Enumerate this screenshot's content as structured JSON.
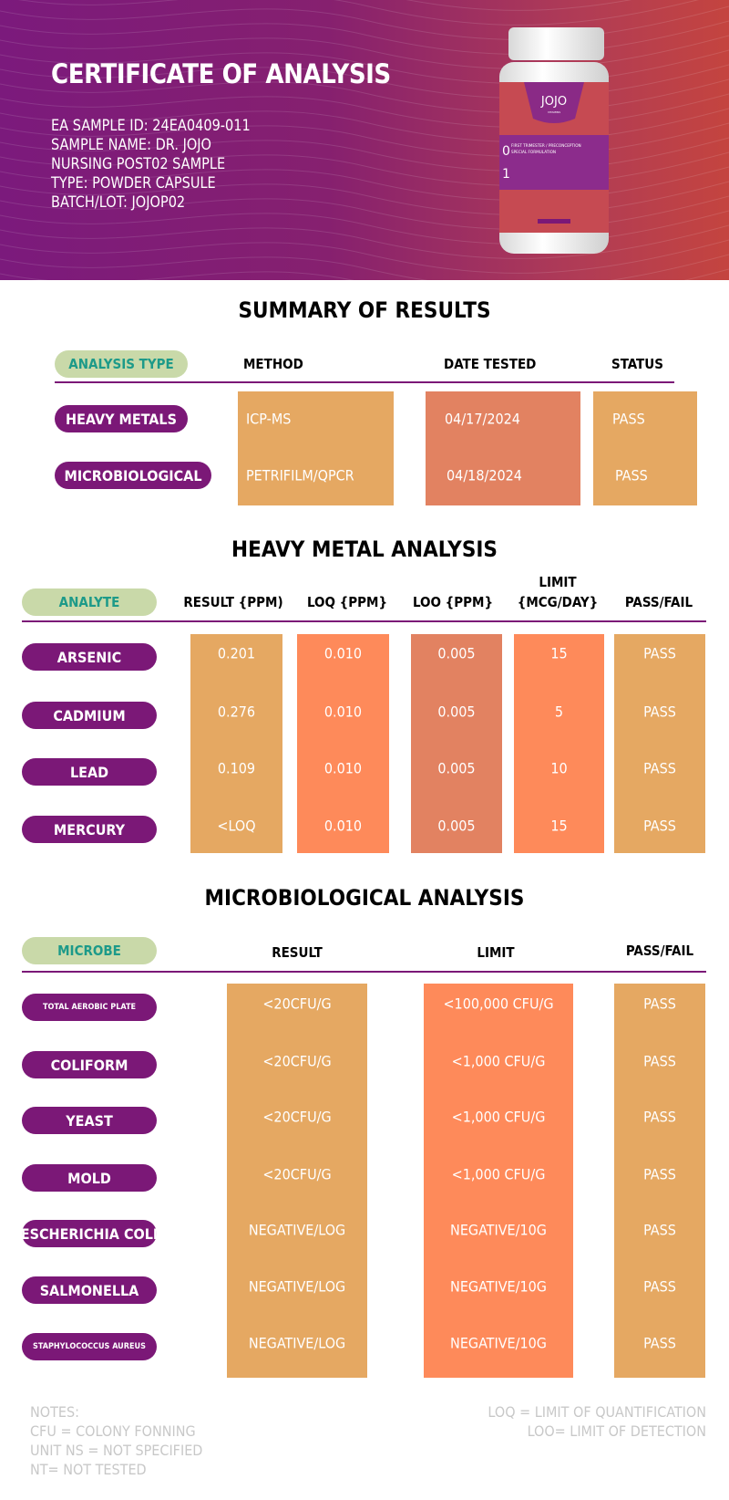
{
  "header": {
    "title": "CERTIFICATE OF ANALYSIS",
    "info_lines": [
      "EA SAMPLE ID: 24EA0409-011",
      "SAMPLE NAME: DR. JOJO",
      "NURSING POST02 SAMPLE",
      "TYPE: POWDER CAPSULE",
      "BATCH/LOT: JOJOP02"
    ],
    "bottle": {
      "brand": "JOJO",
      "sub": "VITAMINS",
      "line1": "FIRST TRIMESTER / PRECONCEPTION",
      "line2": "SPECIAL FORMULATION"
    }
  },
  "colors": {
    "purple": "#7b1877",
    "green_pill": "#c9d9a9",
    "green_text": "#1d9a89",
    "tan": "#e5a862",
    "coral": "#fe8a5a",
    "salmon": "#e28261"
  },
  "summary": {
    "title": "SUMMARY OF RESULTS",
    "headers": [
      "ANALYSIS TYPE",
      "METHOD",
      "DATE TESTED",
      "STATUS"
    ],
    "rows": [
      {
        "type": "HEAVY METALS",
        "method": "ICP-MS",
        "date": "04/17/2024",
        "status": "PASS"
      },
      {
        "type": "MICROBIOLOGICAL",
        "method": "PETRIFILM/QPCR",
        "date": "04/18/2024",
        "status": "PASS"
      }
    ]
  },
  "heavy": {
    "title": "HEAVY METAL ANALYSIS",
    "headers": [
      "ANALYTE",
      "RESULT {PPM)",
      "LOQ {PPM}",
      "LOO {PPM}",
      "LIMIT",
      "{MCG/DAY}",
      "PASS/FAIL"
    ],
    "rows": [
      {
        "name": "ARSENIC",
        "result": "0.201",
        "loq": "0.010",
        "lod": "0.005",
        "limit": "15",
        "pf": "PASS"
      },
      {
        "name": "CADMIUM",
        "result": "0.276",
        "loq": "0.010",
        "lod": "0.005",
        "limit": "5",
        "pf": "PASS"
      },
      {
        "name": "LEAD",
        "result": "0.109",
        "loq": "0.010",
        "lod": "0.005",
        "limit": "10",
        "pf": "PASS"
      },
      {
        "name": "MERCURY",
        "result": "<LOQ",
        "loq": "0.010",
        "lod": "0.005",
        "limit": "15",
        "pf": "PASS"
      }
    ]
  },
  "micro": {
    "title": "MICROBIOLOGICAL ANALYSIS",
    "headers": [
      "MICROBE",
      "RESULT",
      "LIMIT",
      "PASS/FAIL"
    ],
    "rows": [
      {
        "name": "TOTAL AEROBIC PLATE",
        "result": "<20CFU/G",
        "limit": "<100,000 CFU/G",
        "pf": "PASS"
      },
      {
        "name": "COLIFORM",
        "result": "<20CFU/G",
        "limit": "<1,000 CFU/G",
        "pf": "PASS"
      },
      {
        "name": "YEAST",
        "result": "<20CFU/G",
        "limit": "<1,000 CFU/G",
        "pf": "PASS"
      },
      {
        "name": "MOLD",
        "result": "<20CFU/G",
        "limit": "<1,000 CFU/G",
        "pf": "PASS"
      },
      {
        "name": "ESCHERICHIA COLI",
        "result": "NEGATIVE/LOG",
        "limit": "NEGATIVE/10G",
        "pf": "PASS"
      },
      {
        "name": "SALMONELLA",
        "result": "NEGATIVE/LOG",
        "limit": "NEGATIVE/10G",
        "pf": "PASS"
      },
      {
        "name": "STAPHYLOCOCCUS AUREUS",
        "result": "NEGATIVE/LOG",
        "limit": "NEGATIVE/10G",
        "pf": "PASS"
      }
    ]
  },
  "notes": {
    "left": [
      "NOTES:",
      "CFU = COLONY FONNING",
      "UNIT NS = NOT SPECIFIED",
      "NT= NOT TESTED"
    ],
    "right": [
      "LOQ = LIMIT OF QUANTIFICATION",
      "LOO= LIMIT OF DETECTION"
    ]
  }
}
